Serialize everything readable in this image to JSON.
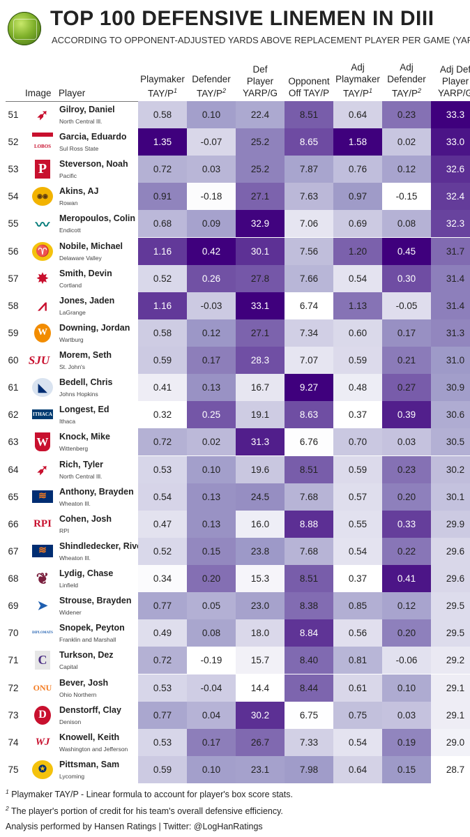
{
  "header": {
    "title": "TOP 100 DEFENSIVE LINEMEN IN DIII",
    "subtitle": "ACCORDING TO OPPONENT-ADJUSTED YARDS ABOVE REPLACEMENT PLAYER PER GAME (YARP/G)",
    "logo_icon": "hansen-ratings-globe-logo"
  },
  "columns": {
    "image": "Image",
    "player": "Player",
    "playmaker": [
      "Playmaker",
      "TAY/P",
      "1"
    ],
    "defender": [
      "Defender",
      "TAY/P",
      "2"
    ],
    "def_player": [
      "Def",
      "Player",
      "YARP/G"
    ],
    "opponent": [
      "Opponent",
      "Off TAY/P"
    ],
    "adj_playmaker": [
      "Adj",
      "Playmaker",
      "TAY/P",
      "1"
    ],
    "adj_defender": [
      "Adj",
      "Defender",
      "TAY/P",
      "2"
    ],
    "adj_def_player": [
      "Adj Def",
      "Player",
      "YARP/G"
    ]
  },
  "colors": {
    "scale_low": "#ffffff",
    "scale_high": "#3f007d"
  },
  "chart_data": {
    "type": "table",
    "rows": [
      {
        "rank": "51",
        "player": "Gilroy, Daniel",
        "team": "North Central Ill.",
        "logo": "cardinal-logo",
        "playmaker": "0.58",
        "defender": "0.10",
        "def_player": "22.4",
        "opponent": "8.51",
        "adj_playmaker": "0.64",
        "adj_defender": "0.23",
        "adj_def_player": "33.3"
      },
      {
        "rank": "52",
        "player": "Garcia, Eduardo",
        "team": "Sul Ross State",
        "logo": "lobos-logo",
        "playmaker": "1.35",
        "defender": "-0.07",
        "def_player": "25.2",
        "opponent": "8.65",
        "adj_playmaker": "1.58",
        "adj_defender": "0.02",
        "adj_def_player": "33.0"
      },
      {
        "rank": "53",
        "player": "Steverson, Noah",
        "team": "Pacific",
        "logo": "p-letter-logo",
        "playmaker": "0.72",
        "defender": "0.03",
        "def_player": "25.2",
        "opponent": "7.87",
        "adj_playmaker": "0.76",
        "adj_defender": "0.12",
        "adj_def_player": "32.6"
      },
      {
        "rank": "54",
        "player": "Akins, AJ",
        "team": "Rowan",
        "logo": "owl-logo",
        "playmaker": "0.91",
        "defender": "-0.18",
        "def_player": "27.1",
        "opponent": "7.63",
        "adj_playmaker": "0.97",
        "adj_defender": "-0.15",
        "adj_def_player": "32.4"
      },
      {
        "rank": "55",
        "player": "Meropoulos, Colin",
        "team": "Endicott",
        "logo": "gull-logo",
        "playmaker": "0.68",
        "defender": "0.09",
        "def_player": "32.9",
        "opponent": "7.06",
        "adj_playmaker": "0.69",
        "adj_defender": "0.08",
        "adj_def_player": "32.3"
      },
      {
        "rank": "56",
        "player": "Nobile, Michael",
        "team": "Delaware Valley",
        "logo": "ram-logo",
        "playmaker": "1.16",
        "defender": "0.42",
        "def_player": "30.1",
        "opponent": "7.56",
        "adj_playmaker": "1.20",
        "adj_defender": "0.45",
        "adj_def_player": "31.7"
      },
      {
        "rank": "57",
        "player": "Smith, Devin",
        "team": "Cortland",
        "logo": "red-dragon-logo",
        "playmaker": "0.52",
        "defender": "0.26",
        "def_player": "27.8",
        "opponent": "7.66",
        "adj_playmaker": "0.54",
        "adj_defender": "0.30",
        "adj_def_player": "31.4"
      },
      {
        "rank": "58",
        "player": "Jones, Jaden",
        "team": "LaGrange",
        "logo": "panther-logo",
        "playmaker": "1.16",
        "defender": "-0.03",
        "def_player": "33.1",
        "opponent": "6.74",
        "adj_playmaker": "1.13",
        "adj_defender": "-0.05",
        "adj_def_player": "31.4"
      },
      {
        "rank": "59",
        "player": "Downing, Jordan",
        "team": "Wartburg",
        "logo": "w-ball-logo",
        "playmaker": "0.58",
        "defender": "0.12",
        "def_player": "27.1",
        "opponent": "7.34",
        "adj_playmaker": "0.60",
        "adj_defender": "0.17",
        "adj_def_player": "31.3"
      },
      {
        "rank": "60",
        "player": "Morem, Seth",
        "team": "St. John's",
        "logo": "sju-logo",
        "playmaker": "0.59",
        "defender": "0.17",
        "def_player": "28.3",
        "opponent": "7.07",
        "adj_playmaker": "0.59",
        "adj_defender": "0.21",
        "adj_def_player": "31.0"
      },
      {
        "rank": "61",
        "player": "Bedell, Chris",
        "team": "Johns Hopkins",
        "logo": "bluejay-logo",
        "playmaker": "0.41",
        "defender": "0.13",
        "def_player": "16.7",
        "opponent": "9.27",
        "adj_playmaker": "0.48",
        "adj_defender": "0.27",
        "adj_def_player": "30.9"
      },
      {
        "rank": "62",
        "player": "Longest, Ed",
        "team": "Ithaca",
        "logo": "ithaca-logo",
        "playmaker": "0.32",
        "defender": "0.25",
        "def_player": "19.1",
        "opponent": "8.63",
        "adj_playmaker": "0.37",
        "adj_defender": "0.39",
        "adj_def_player": "30.6"
      },
      {
        "rank": "63",
        "player": "Knock, Mike",
        "team": "Wittenberg",
        "logo": "w-shield-logo",
        "playmaker": "0.72",
        "defender": "0.02",
        "def_player": "31.3",
        "opponent": "6.76",
        "adj_playmaker": "0.70",
        "adj_defender": "0.03",
        "adj_def_player": "30.5"
      },
      {
        "rank": "64",
        "player": "Rich, Tyler",
        "team": "North Central Ill.",
        "logo": "cardinal-logo",
        "playmaker": "0.53",
        "defender": "0.10",
        "def_player": "19.6",
        "opponent": "8.51",
        "adj_playmaker": "0.59",
        "adj_defender": "0.23",
        "adj_def_player": "30.2"
      },
      {
        "rank": "65",
        "player": "Anthony, Brayden",
        "team": "Wheaton Ill.",
        "logo": "thunder-logo",
        "playmaker": "0.54",
        "defender": "0.13",
        "def_player": "24.5",
        "opponent": "7.68",
        "adj_playmaker": "0.57",
        "adj_defender": "0.20",
        "adj_def_player": "30.1"
      },
      {
        "rank": "66",
        "player": "Cohen, Josh",
        "team": "RPI",
        "logo": "rpi-logo",
        "playmaker": "0.47",
        "defender": "0.13",
        "def_player": "16.0",
        "opponent": "8.88",
        "adj_playmaker": "0.55",
        "adj_defender": "0.33",
        "adj_def_player": "29.9"
      },
      {
        "rank": "67",
        "player": "Shindledecker, River",
        "team": "Wheaton Ill.",
        "logo": "thunder-logo",
        "playmaker": "0.52",
        "defender": "0.15",
        "def_player": "23.8",
        "opponent": "7.68",
        "adj_playmaker": "0.54",
        "adj_defender": "0.22",
        "adj_def_player": "29.6"
      },
      {
        "rank": "68",
        "player": "Lydig, Chase",
        "team": "Linfield",
        "logo": "wildcat-logo",
        "playmaker": "0.34",
        "defender": "0.20",
        "def_player": "15.3",
        "opponent": "8.51",
        "adj_playmaker": "0.37",
        "adj_defender": "0.41",
        "adj_def_player": "29.6"
      },
      {
        "rank": "69",
        "player": "Strouse, Brayden",
        "team": "Widener",
        "logo": "pride-logo",
        "playmaker": "0.77",
        "defender": "0.05",
        "def_player": "23.0",
        "opponent": "8.38",
        "adj_playmaker": "0.85",
        "adj_defender": "0.12",
        "adj_def_player": "29.5"
      },
      {
        "rank": "70",
        "player": "Snopek, Peyton",
        "team": "Franklin and Marshall",
        "logo": "diplomats-logo",
        "playmaker": "0.49",
        "defender": "0.08",
        "def_player": "18.0",
        "opponent": "8.84",
        "adj_playmaker": "0.56",
        "adj_defender": "0.20",
        "adj_def_player": "29.5"
      },
      {
        "rank": "71",
        "player": "Turkson, Dez",
        "team": "Capital",
        "logo": "c-logo",
        "playmaker": "0.72",
        "defender": "-0.19",
        "def_player": "15.7",
        "opponent": "8.40",
        "adj_playmaker": "0.81",
        "adj_defender": "-0.06",
        "adj_def_player": "29.2"
      },
      {
        "rank": "72",
        "player": "Bever, Josh",
        "team": "Ohio Northern",
        "logo": "onu-logo",
        "playmaker": "0.53",
        "defender": "-0.04",
        "def_player": "14.4",
        "opponent": "8.44",
        "adj_playmaker": "0.61",
        "adj_defender": "0.10",
        "adj_def_player": "29.1"
      },
      {
        "rank": "73",
        "player": "Denstorff, Clay",
        "team": "Denison",
        "logo": "d-logo",
        "playmaker": "0.77",
        "defender": "0.04",
        "def_player": "30.2",
        "opponent": "6.75",
        "adj_playmaker": "0.75",
        "adj_defender": "0.03",
        "adj_def_player": "29.1"
      },
      {
        "rank": "74",
        "player": "Knowell, Keith",
        "team": "Washington and Jefferson",
        "logo": "wj-logo",
        "playmaker": "0.53",
        "defender": "0.17",
        "def_player": "26.7",
        "opponent": "7.33",
        "adj_playmaker": "0.54",
        "adj_defender": "0.19",
        "adj_def_player": "29.0"
      },
      {
        "rank": "75",
        "player": "Pittsman, Sam",
        "team": "Lycoming",
        "logo": "lycoming-logo",
        "playmaker": "0.59",
        "defender": "0.10",
        "def_player": "23.1",
        "opponent": "7.98",
        "adj_playmaker": "0.64",
        "adj_defender": "0.15",
        "adj_def_player": "28.7"
      }
    ]
  },
  "footnotes": {
    "note1_mark": "1",
    "note1": "Playmaker TAY/P - Linear formula to account for player's box score stats.",
    "note2_mark": "2",
    "note2": "The player's portion of credit for his team's overall defensive efficiency.",
    "credit": "Analysis performed by Hansen Ratings | Twitter: @LogHanRatings"
  }
}
